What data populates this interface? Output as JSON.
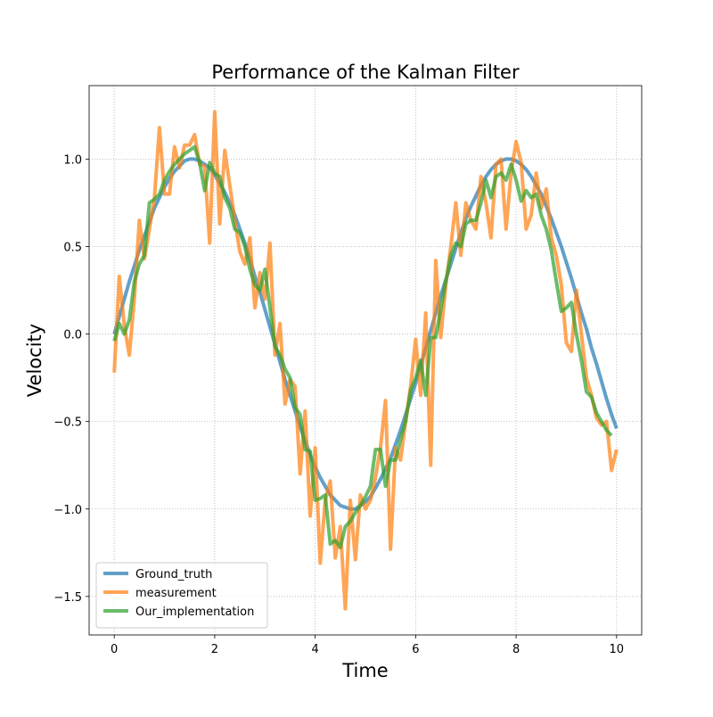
{
  "chart_data": {
    "type": "line",
    "title": "Performance of the Kalman Filter",
    "x_label": "Time",
    "y_label": "Velocity",
    "x": [
      0,
      0.1,
      0.2,
      0.3,
      0.4,
      0.5,
      0.6,
      0.7,
      0.8,
      0.9,
      1,
      1.1,
      1.2,
      1.3,
      1.4,
      1.5,
      1.6,
      1.7,
      1.8,
      1.9,
      2,
      2.1,
      2.2,
      2.3,
      2.4,
      2.5,
      2.6,
      2.7,
      2.8,
      2.9,
      3,
      3.1,
      3.2,
      3.3,
      3.4,
      3.5,
      3.6,
      3.7,
      3.8,
      3.9,
      4,
      4.1,
      4.2,
      4.3,
      4.4,
      4.5,
      4.6,
      4.7,
      4.8,
      4.9,
      5,
      5.1,
      5.2,
      5.3,
      5.4,
      5.5,
      5.6,
      5.7,
      5.8,
      5.9,
      6,
      6.1,
      6.2,
      6.3,
      6.4,
      6.5,
      6.6,
      6.7,
      6.8,
      6.9,
      7,
      7.1,
      7.2,
      7.3,
      7.4,
      7.5,
      7.6,
      7.7,
      7.8,
      7.9,
      8,
      8.1,
      8.2,
      8.3,
      8.4,
      8.5,
      8.6,
      8.7,
      8.8,
      8.9,
      9,
      9.1,
      9.2,
      9.3,
      9.4,
      9.5,
      9.6,
      9.7,
      9.8,
      9.9,
      10
    ],
    "series": [
      {
        "name": "Ground_truth",
        "color": "#1f77b4",
        "values": [
          0,
          0.1,
          0.2,
          0.3,
          0.39,
          0.48,
          0.56,
          0.64,
          0.72,
          0.78,
          0.84,
          0.89,
          0.93,
          0.96,
          0.99,
          1.0,
          1.0,
          0.99,
          0.97,
          0.95,
          0.91,
          0.86,
          0.81,
          0.75,
          0.68,
          0.6,
          0.52,
          0.43,
          0.33,
          0.24,
          0.14,
          0.04,
          -0.06,
          -0.16,
          -0.26,
          -0.35,
          -0.44,
          -0.53,
          -0.61,
          -0.69,
          -0.76,
          -0.82,
          -0.87,
          -0.92,
          -0.95,
          -0.98,
          -0.99,
          -1.0,
          -1.0,
          -0.98,
          -0.96,
          -0.93,
          -0.88,
          -0.83,
          -0.77,
          -0.71,
          -0.63,
          -0.55,
          -0.46,
          -0.37,
          -0.28,
          -0.18,
          -0.08,
          0.02,
          0.12,
          0.22,
          0.31,
          0.4,
          0.49,
          0.58,
          0.66,
          0.73,
          0.79,
          0.85,
          0.9,
          0.94,
          0.97,
          0.99,
          1.0,
          1.0,
          0.99,
          0.97,
          0.94,
          0.9,
          0.85,
          0.8,
          0.73,
          0.66,
          0.58,
          0.5,
          0.41,
          0.32,
          0.22,
          0.12,
          0.03,
          -0.08,
          -0.17,
          -0.27,
          -0.37,
          -0.46,
          -0.54
        ]
      },
      {
        "name": "measurement",
        "color": "#ff7f0e",
        "values": [
          -0.22,
          0.33,
          0.05,
          -0.12,
          0.2,
          0.65,
          0.43,
          0.6,
          0.78,
          1.18,
          0.8,
          0.8,
          1.07,
          0.95,
          1.08,
          1.08,
          1.14,
          0.97,
          0.96,
          0.52,
          1.27,
          0.63,
          1.05,
          0.85,
          0.65,
          0.47,
          0.4,
          0.55,
          0.15,
          0.35,
          0.2,
          0.52,
          -0.12,
          0.06,
          -0.4,
          -0.26,
          -0.3,
          -0.8,
          -0.44,
          -1.04,
          -0.65,
          -1.31,
          -0.95,
          -0.84,
          -1.28,
          -1.1,
          -1.57,
          -0.95,
          -1.29,
          -0.92,
          -1.0,
          -0.95,
          -0.82,
          -0.65,
          -0.38,
          -1.23,
          -0.65,
          -0.72,
          -0.5,
          -0.3,
          -0.03,
          -0.35,
          0.12,
          -0.75,
          0.42,
          -0.02,
          0.28,
          0.5,
          0.75,
          0.45,
          0.75,
          0.65,
          0.6,
          0.9,
          0.75,
          0.55,
          0.97,
          1.0,
          0.6,
          0.92,
          1.1,
          0.98,
          0.6,
          0.68,
          0.92,
          0.72,
          0.83,
          0.55,
          0.45,
          0.28,
          -0.05,
          -0.1,
          0.25,
          0.0,
          -0.25,
          -0.35,
          -0.48,
          -0.52,
          -0.5,
          -0.78,
          -0.66
        ]
      },
      {
        "name": "Our_implementation",
        "color": "#2ca02c",
        "values": [
          -0.04,
          0.06,
          0.0,
          0.08,
          0.3,
          0.4,
          0.45,
          0.75,
          0.77,
          0.8,
          0.88,
          0.93,
          0.97,
          1.0,
          1.03,
          1.05,
          1.07,
          0.98,
          0.82,
          0.98,
          0.92,
          0.9,
          0.78,
          0.72,
          0.6,
          0.58,
          0.5,
          0.37,
          0.28,
          0.25,
          0.37,
          0.15,
          -0.07,
          -0.12,
          -0.2,
          -0.25,
          -0.42,
          -0.46,
          -0.66,
          -0.67,
          -0.95,
          -0.94,
          -0.92,
          -1.2,
          -1.18,
          -1.22,
          -1.1,
          -1.07,
          -1.02,
          -0.98,
          -0.93,
          -0.87,
          -0.66,
          -0.66,
          -0.87,
          -0.72,
          -0.72,
          -0.6,
          -0.5,
          -0.32,
          -0.25,
          -0.15,
          -0.35,
          -0.02,
          -0.02,
          0.14,
          0.3,
          0.45,
          0.52,
          0.5,
          0.63,
          0.65,
          0.65,
          0.75,
          0.88,
          0.78,
          0.9,
          0.92,
          0.88,
          0.97,
          0.88,
          0.76,
          0.82,
          0.78,
          0.8,
          0.68,
          0.6,
          0.48,
          0.3,
          0.13,
          0.15,
          0.18,
          0.0,
          -0.15,
          -0.33,
          -0.36,
          -0.45,
          -0.5,
          -0.55,
          -0.58,
          null
        ]
      }
    ],
    "xlim": [
      -0.5,
      10.5
    ],
    "ylim": [
      -1.72,
      1.42
    ],
    "xticks": [
      0,
      2,
      4,
      6,
      8,
      10
    ],
    "yticks": [
      {
        "value": -1.5,
        "label": "−1.5"
      },
      {
        "value": -1,
        "label": "−1.0"
      },
      {
        "value": -0.5,
        "label": "−0.5"
      },
      {
        "value": 0,
        "label": "0.0"
      },
      0.5,
      {
        "value": 1,
        "label": "1.0"
      }
    ],
    "grid": true,
    "legend": "lower left"
  }
}
